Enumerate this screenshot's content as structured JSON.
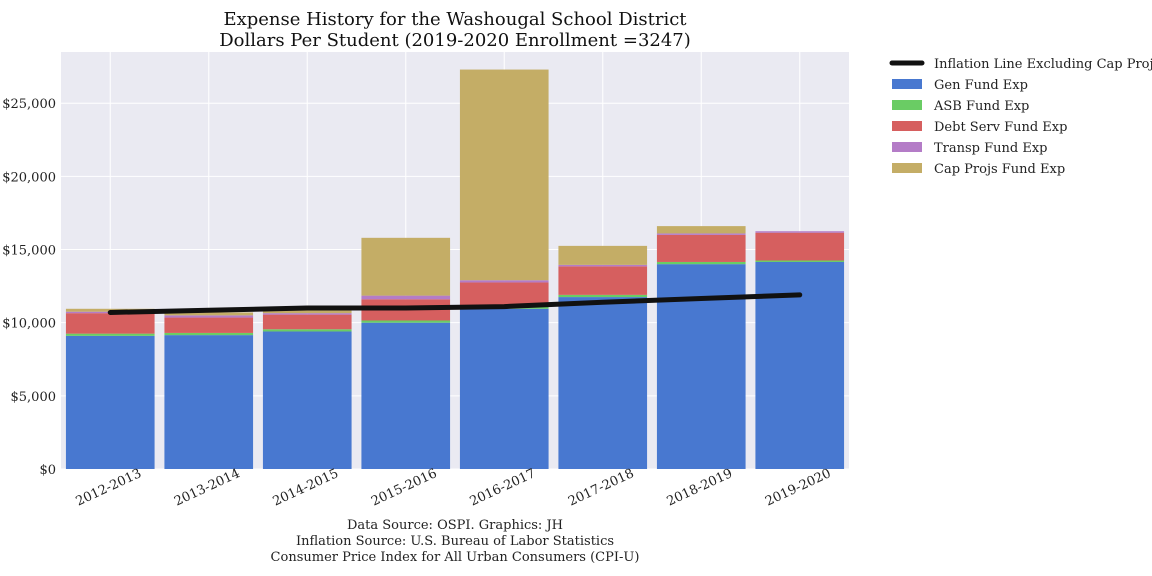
{
  "chart_data": {
    "type": "bar",
    "stacked": true,
    "title": "Expense History for the Washougal School District",
    "subtitle": "Dollars Per Student (2019-2020 Enrollment =3247)",
    "categories": [
      "2012-2013",
      "2013-2014",
      "2014-2015",
      "2015-2016",
      "2016-2017",
      "2017-2018",
      "2018-2019",
      "2019-2020"
    ],
    "series": [
      {
        "name": "Gen Fund Exp",
        "color": "#4878d0",
        "values": [
          9100,
          9150,
          9400,
          10000,
          10950,
          11750,
          14000,
          14150
        ]
      },
      {
        "name": "ASB Fund Exp",
        "color": "#6acc64",
        "values": [
          150,
          150,
          150,
          150,
          150,
          150,
          150,
          100
        ]
      },
      {
        "name": "Debt Serv Fund Exp",
        "color": "#d65f5f",
        "values": [
          1400,
          1050,
          1000,
          1450,
          1650,
          1950,
          1850,
          1900
        ]
      },
      {
        "name": "Transp Fund Exp",
        "color": "#b47cc7",
        "values": [
          100,
          150,
          100,
          250,
          150,
          100,
          100,
          100
        ]
      },
      {
        "name": "Cap Projs Fund Exp",
        "color": "#c4ad66",
        "values": [
          200,
          200,
          250,
          3950,
          14400,
          1300,
          500,
          0
        ]
      }
    ],
    "line": {
      "name": "Inflation Line Excluding Cap Projs",
      "color": "#111111",
      "values": [
        10700,
        10850,
        11000,
        11000,
        11100,
        11400,
        11650,
        11900
      ]
    },
    "ylim": [
      0,
      28500
    ],
    "yticks": [
      0,
      5000,
      10000,
      15000,
      20000,
      25000
    ],
    "ytick_labels": [
      "$0",
      "$5,000",
      "$10,000",
      "$15,000",
      "$20,000",
      "$25,000"
    ],
    "xlabel": "",
    "ylabel": "",
    "grid": true,
    "legend_position": "outside-right-top",
    "background": "#eaeaf2"
  },
  "source_lines": [
    "Data Source: OSPI. Graphics: JH",
    "Inflation Source: U.S. Bureau of Labor Statistics",
    "Consumer Price Index for All Urban Consumers (CPI-U)"
  ]
}
